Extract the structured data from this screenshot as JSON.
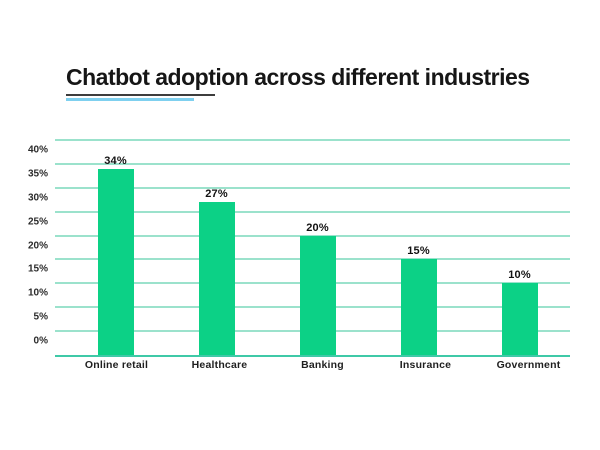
{
  "title": "Chatbot adoption across different industries",
  "chart_data": {
    "type": "bar",
    "title": "Chatbot adoption across different industries",
    "categories": [
      "Online retail",
      "Healthcare",
      "Banking",
      "Insurance",
      "Government"
    ],
    "values": [
      34,
      27,
      20,
      15,
      10
    ],
    "data_labels": [
      "34%",
      "27%",
      "20%",
      "15%",
      "10%"
    ],
    "yticks": [
      {
        "value": 0,
        "label": "0%"
      },
      {
        "value": 5,
        "label": "5%"
      },
      {
        "value": 10,
        "label": "10%"
      },
      {
        "value": 15,
        "label": "15%"
      },
      {
        "value": 20,
        "label": "20%"
      },
      {
        "value": 25,
        "label": "25%"
      },
      {
        "value": 30,
        "label": "30%"
      },
      {
        "value": 35,
        "label": "35%"
      },
      {
        "value": 40,
        "label": "40%"
      }
    ],
    "ylim": [
      -5,
      40
    ],
    "xlabel": "",
    "ylabel": "",
    "grid": true,
    "legend": false,
    "colors": {
      "bar": "#0CD186",
      "gridline": "#9BE2CC",
      "baseline": "#3FC9A7",
      "title_text": "#161616",
      "label_text": "#111111",
      "underline_dark": "#3D3D3D",
      "underline_blue": "#7FD0EF",
      "background": "#FFFFFF"
    }
  }
}
